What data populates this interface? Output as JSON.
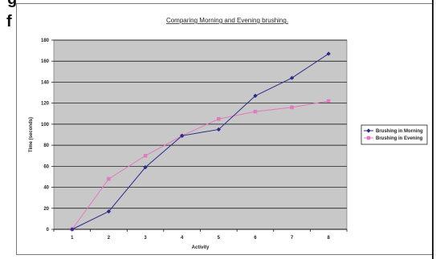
{
  "background": {
    "glyph_top": "g",
    "glyph_mid": "f"
  },
  "chart_data": {
    "type": "line",
    "title": "Comparing Morning and Evening brushing.",
    "xlabel": "Activity",
    "ylabel": "Time (seconds)",
    "categories": [
      "1",
      "2",
      "3",
      "4",
      "5",
      "6",
      "7",
      "8"
    ],
    "ylim": [
      0,
      180
    ],
    "yticks": [
      0,
      20,
      40,
      60,
      80,
      100,
      120,
      140,
      160,
      180
    ],
    "grid": true,
    "legend_position": "right",
    "plot_background": "#c8c8c8",
    "series": [
      {
        "name": "Brushing in Morning",
        "color": "#2b2b8a",
        "marker": "diamond",
        "values": [
          0,
          17,
          59,
          89,
          95,
          127,
          144,
          167
        ]
      },
      {
        "name": "Brushing in Evening",
        "color": "#e07ac0",
        "marker": "square",
        "values": [
          0,
          48,
          70,
          89,
          105,
          112,
          116,
          122
        ]
      }
    ]
  }
}
